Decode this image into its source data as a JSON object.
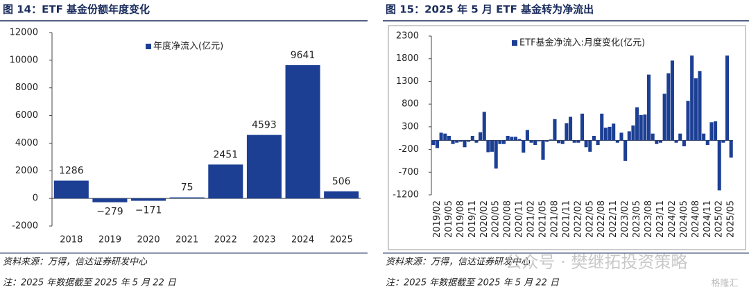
{
  "chart_data": [
    {
      "type": "bar",
      "title": "图 14：ETF 基金份额年度变化",
      "legend": "年度净流入(亿元)",
      "color": "#1c3f94",
      "categories": [
        "2018",
        "2019",
        "2020",
        "2021",
        "2022",
        "2023",
        "2024",
        "2025"
      ],
      "values": [
        1286,
        -279,
        -171,
        75,
        2451,
        4593,
        9641,
        506
      ],
      "value_labels": [
        "1286",
        "−279",
        "−171",
        "75",
        "2451",
        "4593",
        "9641",
        "506"
      ],
      "ylim": [
        -2000,
        12000
      ],
      "yticks": [
        -2000,
        0,
        2000,
        4000,
        6000,
        8000,
        10000,
        12000
      ],
      "grid": false,
      "source": "资料来源：万得，信达证券研发中心",
      "note": "注：2025 年数据截至 2025 年 5 月 22 日"
    },
    {
      "type": "bar",
      "title": "图 15：2025 年 5 月 ETF 基金转为净流出",
      "legend": "ETF基金净流入:月度变化(亿元)",
      "color": "#1c3f94",
      "categories": [
        null,
        "2019/02",
        null,
        null,
        "2019/05",
        null,
        null,
        "2019/08",
        null,
        null,
        "2019/11",
        null,
        null,
        "2020/02",
        null,
        null,
        "2020/05",
        null,
        null,
        "2020/08",
        null,
        null,
        "2020/11",
        null,
        null,
        "2021/02",
        null,
        null,
        "2021/05",
        null,
        null,
        "2021/08",
        null,
        null,
        "2021/11",
        null,
        null,
        "2022/02",
        null,
        null,
        "2022/05",
        null,
        null,
        "2022/08",
        null,
        null,
        "2022/11",
        null,
        null,
        "2023/02",
        null,
        null,
        "2023/05",
        null,
        null,
        "2023/08",
        null,
        null,
        "2023/11",
        null,
        null,
        "2024/02",
        null,
        null,
        "2024/05",
        null,
        null,
        "2024/08",
        null,
        null,
        "2024/11",
        null,
        null,
        "2025/02",
        null,
        null,
        "2025/05"
      ],
      "values": [
        -100,
        -170,
        170,
        150,
        100,
        -80,
        -50,
        -30,
        -150,
        -30,
        100,
        -50,
        180,
        630,
        -260,
        -250,
        -620,
        -80,
        -80,
        100,
        80,
        80,
        30,
        -270,
        230,
        -50,
        -100,
        -20,
        -430,
        -30,
        20,
        470,
        -60,
        -80,
        380,
        520,
        -50,
        -50,
        590,
        -150,
        -250,
        100,
        -100,
        590,
        280,
        300,
        370,
        -50,
        170,
        -450,
        200,
        330,
        730,
        560,
        570,
        1450,
        150,
        -80,
        -50,
        1030,
        1480,
        1760,
        -50,
        150,
        -130,
        870,
        1870,
        1370,
        1530,
        150,
        -100,
        400,
        420,
        -1100,
        -50,
        1870,
        -380
      ],
      "ylim": [
        -1200,
        2300
      ],
      "yticks": [
        -1200,
        -700,
        -200,
        300,
        800,
        1300,
        1800,
        2300
      ],
      "grid": false,
      "source": "资料来源：万得，信达证券研发中心",
      "note": "注：2025 年数据截至 2025 年 5 月 22 日"
    }
  ],
  "watermark": "公众号 · 樊继拓投资策略",
  "watermark2": "格隆汇"
}
